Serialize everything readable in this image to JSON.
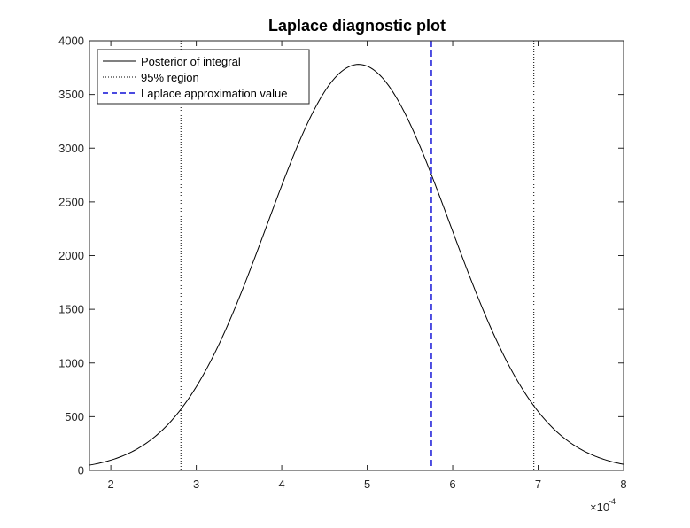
{
  "chart_data": {
    "type": "line",
    "title": "Laplace diagnostic plot",
    "xlabel": "",
    "ylabel": "",
    "x_multiplier_label": "×10",
    "x_multiplier_exponent": "-4",
    "xlim": [
      1.75,
      8.0
    ],
    "ylim": [
      0,
      4000
    ],
    "x_ticks": [
      2,
      3,
      4,
      5,
      6,
      7,
      8
    ],
    "y_ticks": [
      0,
      500,
      1000,
      1500,
      2000,
      2500,
      3000,
      3500,
      4000
    ],
    "grid": false,
    "legend_position": "top-left",
    "series": [
      {
        "name": "Posterior of integral",
        "style": "solid",
        "color": "#000000",
        "distribution": "normal",
        "peak_x": 4.9,
        "peak_y": 3780,
        "x": [
          1.75,
          2.0,
          2.25,
          2.5,
          2.75,
          3.0,
          3.25,
          3.5,
          3.75,
          4.0,
          4.25,
          4.5,
          4.75,
          4.9,
          5.0,
          5.25,
          5.5,
          5.75,
          6.0,
          6.25,
          6.5,
          6.75,
          7.0,
          7.25,
          7.5,
          7.75,
          8.0
        ],
        "y": [
          44,
          95,
          188,
          342,
          573,
          883,
          1254,
          1691,
          2181,
          2661,
          3118,
          3497,
          3735,
          3780,
          3762,
          3583,
          3229,
          2751,
          2218,
          1688,
          1209,
          818,
          520,
          310,
          173,
          91,
          44
        ]
      },
      {
        "name": "95% region",
        "style": "dotted",
        "color": "#000000",
        "x_values": [
          2.82,
          6.95
        ]
      },
      {
        "name": "Laplace approximation value",
        "style": "dashed",
        "color": "#4a4ae0",
        "x_values": [
          5.75
        ]
      }
    ]
  }
}
